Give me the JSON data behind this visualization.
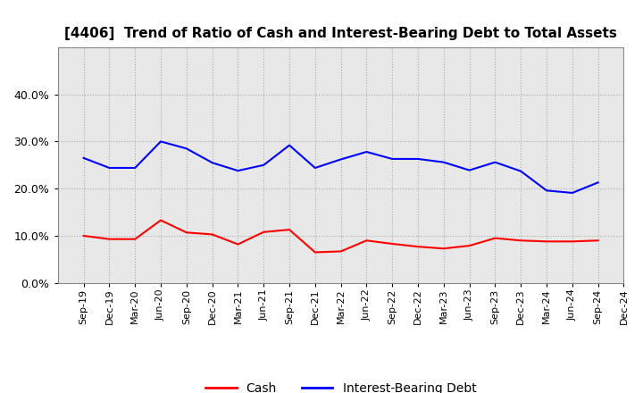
{
  "title": "[4406]  Trend of Ratio of Cash and Interest-Bearing Debt to Total Assets",
  "x_labels": [
    "Sep-19",
    "Dec-19",
    "Mar-20",
    "Jun-20",
    "Sep-20",
    "Dec-20",
    "Mar-21",
    "Jun-21",
    "Sep-21",
    "Dec-21",
    "Mar-22",
    "Jun-22",
    "Sep-22",
    "Dec-22",
    "Mar-23",
    "Jun-23",
    "Sep-23",
    "Dec-23",
    "Mar-24",
    "Jun-24",
    "Sep-24",
    "Dec-24"
  ],
  "cash": [
    0.1,
    0.093,
    0.093,
    0.133,
    0.107,
    0.103,
    0.082,
    0.108,
    0.113,
    0.065,
    0.067,
    0.09,
    0.083,
    0.077,
    0.073,
    0.079,
    0.095,
    0.09,
    0.088,
    0.088,
    0.09,
    null
  ],
  "interest_bearing_debt": [
    0.265,
    0.244,
    0.244,
    0.3,
    0.285,
    0.255,
    0.238,
    0.25,
    0.292,
    0.244,
    0.262,
    0.278,
    0.263,
    0.263,
    0.256,
    0.239,
    0.256,
    0.237,
    0.196,
    0.191,
    0.213,
    null
  ],
  "cash_color": "#ff0000",
  "ibd_color": "#0000ff",
  "ylim": [
    0.0,
    0.5
  ],
  "yticks": [
    0.0,
    0.1,
    0.2,
    0.3,
    0.4
  ],
  "background_color": "#ffffff",
  "plot_bg_color": "#e8e8e8",
  "grid_color": "#aaaaaa",
  "title_fontsize": 11,
  "tick_fontsize": 8,
  "legend_labels": [
    "Cash",
    "Interest-Bearing Debt"
  ]
}
